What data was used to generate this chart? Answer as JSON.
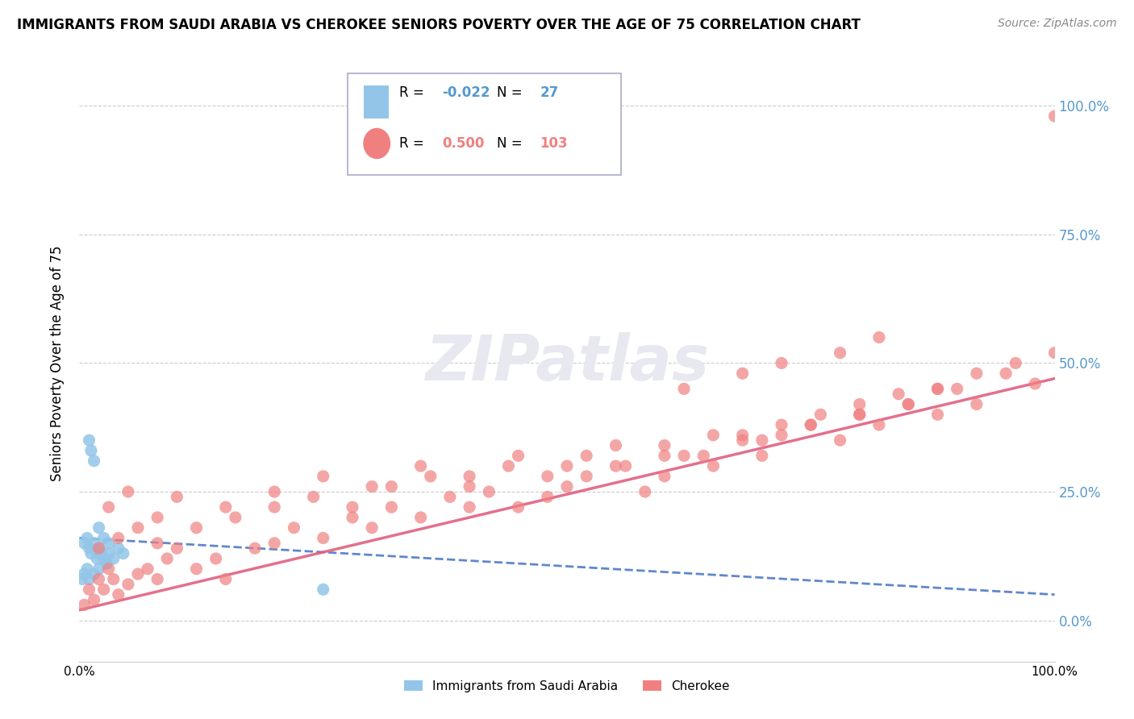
{
  "title": "IMMIGRANTS FROM SAUDI ARABIA VS CHEROKEE SENIORS POVERTY OVER THE AGE OF 75 CORRELATION CHART",
  "source": "Source: ZipAtlas.com",
  "ylabel": "Seniors Poverty Over the Age of 75",
  "ytick_labels_right": [
    "0.0%",
    "25.0%",
    "50.0%",
    "75.0%",
    "100.0%"
  ],
  "ytick_values": [
    0,
    25,
    50,
    75,
    100
  ],
  "xtick_left": "0.0%",
  "xtick_right": "100.0%",
  "blue_color": "#92C5E8",
  "pink_color": "#F08080",
  "blue_line_color": "#4472C4",
  "pink_line_color": "#E06080",
  "watermark_color": "#E8E8F0",
  "blue_scatter_x": [
    0.5,
    0.8,
    1.0,
    1.2,
    1.5,
    1.8,
    2.0,
    2.2,
    2.5,
    2.8,
    3.0,
    3.5,
    4.0,
    4.5,
    1.0,
    1.2,
    1.5,
    2.0,
    2.5,
    3.0,
    0.3,
    0.5,
    0.8,
    1.0,
    1.5,
    2.0,
    25.0
  ],
  "blue_scatter_y": [
    15,
    16,
    14,
    13,
    15,
    12,
    14,
    13,
    12,
    11,
    13,
    12,
    14,
    13,
    35,
    33,
    31,
    18,
    16,
    15,
    8,
    9,
    10,
    8,
    9,
    10,
    6
  ],
  "pink_scatter_x": [
    0.5,
    1.0,
    1.5,
    2.0,
    2.5,
    3.0,
    3.5,
    4.0,
    5.0,
    6.0,
    7.0,
    8.0,
    9.0,
    10.0,
    12.0,
    14.0,
    15.0,
    18.0,
    20.0,
    22.0,
    25.0,
    28.0,
    30.0,
    32.0,
    35.0,
    38.0,
    40.0,
    42.0,
    45.0,
    48.0,
    50.0,
    52.0,
    55.0,
    58.0,
    60.0,
    62.0,
    65.0,
    68.0,
    70.0,
    72.0,
    75.0,
    78.0,
    80.0,
    82.0,
    85.0,
    88.0,
    90.0,
    92.0,
    95.0,
    98.0,
    100.0,
    3.0,
    5.0,
    8.0,
    10.0,
    15.0,
    20.0,
    25.0,
    30.0,
    35.0,
    40.0,
    45.0,
    50.0,
    55.0,
    60.0,
    65.0,
    70.0,
    75.0,
    80.0,
    85.0,
    88.0,
    2.0,
    4.0,
    6.0,
    8.0,
    12.0,
    16.0,
    20.0,
    24.0,
    28.0,
    32.0,
    36.0,
    40.0,
    44.0,
    48.0,
    52.0,
    56.0,
    60.0,
    64.0,
    68.0,
    72.0,
    76.0,
    80.0,
    84.0,
    88.0,
    92.0,
    96.0,
    100.0,
    62.0,
    68.0,
    72.0,
    78.0,
    82.0
  ],
  "pink_scatter_y": [
    3,
    6,
    4,
    8,
    6,
    10,
    8,
    5,
    7,
    9,
    10,
    8,
    12,
    14,
    10,
    12,
    8,
    14,
    15,
    18,
    16,
    20,
    18,
    22,
    20,
    24,
    22,
    25,
    22,
    24,
    26,
    28,
    30,
    25,
    28,
    32,
    30,
    35,
    32,
    36,
    38,
    35,
    40,
    38,
    42,
    40,
    45,
    42,
    48,
    46,
    98,
    22,
    25,
    20,
    24,
    22,
    25,
    28,
    26,
    30,
    28,
    32,
    30,
    34,
    32,
    36,
    35,
    38,
    40,
    42,
    45,
    14,
    16,
    18,
    15,
    18,
    20,
    22,
    24,
    22,
    26,
    28,
    26,
    30,
    28,
    32,
    30,
    34,
    32,
    36,
    38,
    40,
    42,
    44,
    45,
    48,
    50,
    52,
    45,
    48,
    50,
    52,
    55
  ],
  "blue_line_x": [
    0,
    100
  ],
  "blue_line_y": [
    16,
    5
  ],
  "pink_line_x": [
    0,
    100
  ],
  "pink_line_y": [
    2,
    47
  ],
  "xlim": [
    0,
    100
  ],
  "ylim": [
    -8,
    108
  ],
  "grid_color": "#CCCCCC",
  "legend_R_blue": "-0.022",
  "legend_N_blue": "27",
  "legend_R_pink": "0.500",
  "legend_N_pink": "103",
  "legend_label_blue": "Immigrants from Saudi Arabia",
  "legend_label_pink": "Cherokee"
}
